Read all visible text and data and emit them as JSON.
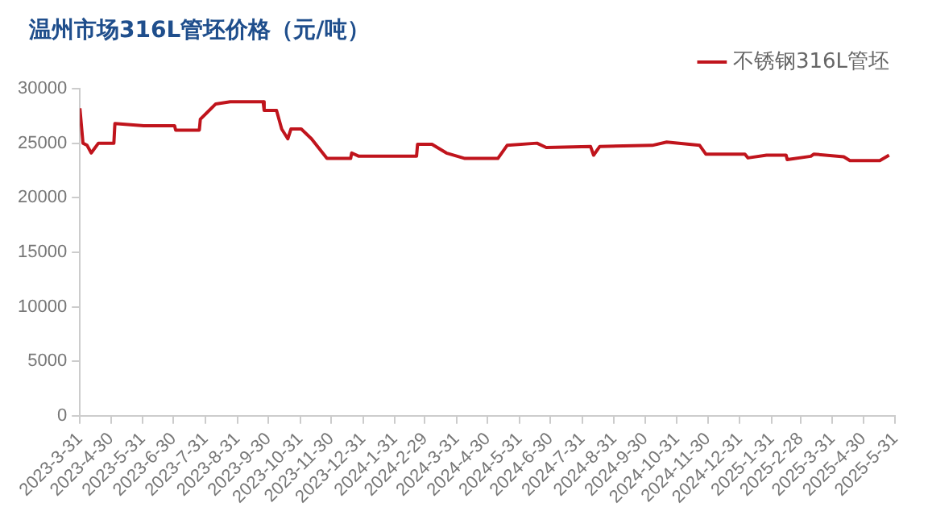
{
  "chart_data": {
    "type": "line",
    "title": "温州市场316L管坯价格（元/吨）",
    "series": [
      {
        "name": "不锈钢316L管坯",
        "color": "#c0141c",
        "x": [
          "2023-03-31",
          "2023-04-03",
          "2023-04-07",
          "2023-04-11",
          "2023-04-18",
          "2023-05-03",
          "2023-05-04",
          "2023-06-01",
          "2023-07-01",
          "2023-07-02",
          "2023-07-25",
          "2023-07-26",
          "2023-08-10",
          "2023-08-24",
          "2023-09-25",
          "2023-09-26",
          "2023-10-08",
          "2023-10-13",
          "2023-10-19",
          "2023-10-22",
          "2023-11-01",
          "2023-11-11",
          "2023-11-26",
          "2023-12-19",
          "2023-12-20",
          "2023-12-27",
          "2024-02-21",
          "2024-02-22",
          "2024-03-07",
          "2024-03-21",
          "2024-04-08",
          "2024-05-10",
          "2024-05-19",
          "2024-06-17",
          "2024-06-26",
          "2024-08-08",
          "2024-08-11",
          "2024-08-17",
          "2024-10-07",
          "2024-10-21",
          "2024-11-22",
          "2024-11-28",
          "2025-01-05",
          "2025-01-08",
          "2025-01-26",
          "2025-02-14",
          "2025-02-15",
          "2025-03-10",
          "2025-03-13",
          "2025-04-11",
          "2025-04-17",
          "2025-05-16",
          "2025-05-25"
        ],
        "values": [
          28200,
          25000,
          24800,
          24100,
          25000,
          25000,
          26800,
          26600,
          26600,
          26200,
          26200,
          27200,
          28600,
          28800,
          28800,
          28000,
          28000,
          26300,
          25400,
          26300,
          26300,
          25400,
          23600,
          23600,
          24100,
          23800,
          23800,
          24900,
          24900,
          24100,
          23600,
          23600,
          24800,
          25000,
          24600,
          24700,
          23900,
          24700,
          24800,
          25100,
          24800,
          24000,
          24000,
          23650,
          23900,
          23900,
          23500,
          23800,
          24000,
          23750,
          23400,
          23400,
          23900
        ]
      }
    ],
    "xlim": [
      "2023-03-31",
      "2025-05-31"
    ],
    "xticks": [
      {
        "value": "2023-03-31",
        "label": "2023-3-31"
      },
      {
        "value": "2023-04-30",
        "label": "2023-4-30"
      },
      {
        "value": "2023-05-31",
        "label": "2023-5-31"
      },
      {
        "value": "2023-06-30",
        "label": "2023-6-30"
      },
      {
        "value": "2023-07-31",
        "label": "2023-7-31"
      },
      {
        "value": "2023-08-31",
        "label": "2023-8-31"
      },
      {
        "value": "2023-09-30",
        "label": "2023-9-30"
      },
      {
        "value": "2023-10-31",
        "label": "2023-10-31"
      },
      {
        "value": "2023-11-30",
        "label": "2023-11-30"
      },
      {
        "value": "2023-12-31",
        "label": "2023-12-31"
      },
      {
        "value": "2024-01-31",
        "label": "2024-1-31"
      },
      {
        "value": "2024-02-29",
        "label": "2024-2-29"
      },
      {
        "value": "2024-03-31",
        "label": "2024-3-31"
      },
      {
        "value": "2024-04-30",
        "label": "2024-4-30"
      },
      {
        "value": "2024-05-31",
        "label": "2024-5-31"
      },
      {
        "value": "2024-06-30",
        "label": "2024-6-30"
      },
      {
        "value": "2024-07-31",
        "label": "2024-7-31"
      },
      {
        "value": "2024-08-31",
        "label": "2024-8-31"
      },
      {
        "value": "2024-09-30",
        "label": "2024-9-30"
      },
      {
        "value": "2024-10-31",
        "label": "2024-10-31"
      },
      {
        "value": "2024-11-30",
        "label": "2024-11-30"
      },
      {
        "value": "2024-12-31",
        "label": "2024-12-31"
      },
      {
        "value": "2025-01-31",
        "label": "2025-1-31"
      },
      {
        "value": "2025-02-28",
        "label": "2025-2-28"
      },
      {
        "value": "2025-03-31",
        "label": "2025-3-31"
      },
      {
        "value": "2025-04-30",
        "label": "2025-4-30"
      },
      {
        "value": "2025-05-31",
        "label": "2025-5-31"
      }
    ],
    "ylim": [
      0,
      30000
    ],
    "yticks": [
      0,
      5000,
      10000,
      15000,
      20000,
      25000,
      30000
    ],
    "grid": false,
    "legend": "top right",
    "marker": "none",
    "line_style": "solid"
  }
}
